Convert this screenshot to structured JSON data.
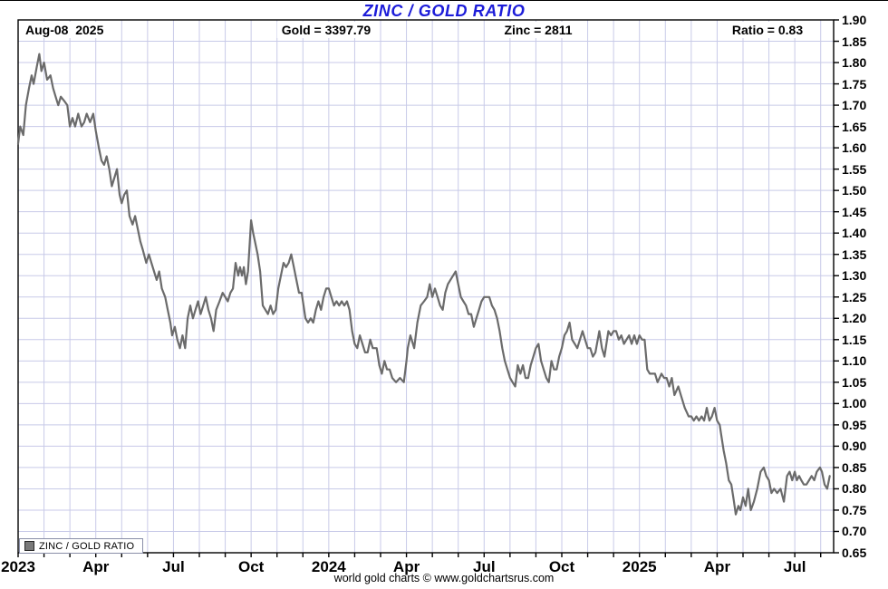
{
  "title": "ZINC / GOLD RATIO",
  "header": {
    "date": "Aug-08  2025",
    "gold": "Gold = 3397.79",
    "zinc": "Zinc = 2811",
    "ratio": "Ratio = 0.83"
  },
  "legend": {
    "label": "ZINC / GOLD RATIO",
    "swatch_color": "#7a7a7a"
  },
  "footer_credit": "world gold charts © www.goldchartsrus.com",
  "colors": {
    "title_blue": "#1c1cd9",
    "line_gray": "#6b6b6b",
    "grid_blue": "#c8cae8",
    "frame_black": "#000000"
  },
  "chart_data": {
    "type": "line",
    "series_name": "ZINC / GOLD RATIO",
    "x_unit": "months since Jan 2023 (Jan 2023 to Aug-08 2025)",
    "xlim": [
      0,
      31.5
    ],
    "ylim": [
      0.65,
      1.9
    ],
    "y_tick_step": 0.05,
    "x_minor_tick_every_months": 1,
    "grid": true,
    "legend_position": "bottom-left",
    "x_ticks": [
      {
        "m": 0,
        "label": "2023"
      },
      {
        "m": 3,
        "label": "Apr"
      },
      {
        "m": 6,
        "label": "Jul"
      },
      {
        "m": 9,
        "label": "Oct"
      },
      {
        "m": 12,
        "label": "2024"
      },
      {
        "m": 15,
        "label": "Apr"
      },
      {
        "m": 18,
        "label": "Jul"
      },
      {
        "m": 21,
        "label": "Oct"
      },
      {
        "m": 24,
        "label": "2025"
      },
      {
        "m": 27,
        "label": "Apr"
      },
      {
        "m": 30,
        "label": "Jul"
      }
    ],
    "points": [
      [
        0,
        1.61
      ],
      [
        0.08,
        1.65
      ],
      [
        0.2,
        1.63
      ],
      [
        0.3,
        1.7
      ],
      [
        0.42,
        1.74
      ],
      [
        0.52,
        1.77
      ],
      [
        0.6,
        1.75
      ],
      [
        0.72,
        1.79
      ],
      [
        0.82,
        1.82
      ],
      [
        0.9,
        1.78
      ],
      [
        1.0,
        1.8
      ],
      [
        1.12,
        1.76
      ],
      [
        1.25,
        1.77
      ],
      [
        1.35,
        1.74
      ],
      [
        1.45,
        1.72
      ],
      [
        1.55,
        1.7
      ],
      [
        1.65,
        1.72
      ],
      [
        1.78,
        1.71
      ],
      [
        1.9,
        1.7
      ],
      [
        2.0,
        1.65
      ],
      [
        2.1,
        1.67
      ],
      [
        2.2,
        1.65
      ],
      [
        2.32,
        1.68
      ],
      [
        2.45,
        1.65
      ],
      [
        2.55,
        1.66
      ],
      [
        2.65,
        1.68
      ],
      [
        2.78,
        1.66
      ],
      [
        2.9,
        1.68
      ],
      [
        3.0,
        1.64
      ],
      [
        3.12,
        1.6
      ],
      [
        3.22,
        1.57
      ],
      [
        3.32,
        1.56
      ],
      [
        3.42,
        1.58
      ],
      [
        3.52,
        1.55
      ],
      [
        3.62,
        1.51
      ],
      [
        3.72,
        1.53
      ],
      [
        3.82,
        1.55
      ],
      [
        3.92,
        1.49
      ],
      [
        4.0,
        1.47
      ],
      [
        4.1,
        1.49
      ],
      [
        4.2,
        1.5
      ],
      [
        4.3,
        1.44
      ],
      [
        4.42,
        1.42
      ],
      [
        4.52,
        1.44
      ],
      [
        4.62,
        1.41
      ],
      [
        4.72,
        1.38
      ],
      [
        4.82,
        1.36
      ],
      [
        4.95,
        1.33
      ],
      [
        5.05,
        1.35
      ],
      [
        5.15,
        1.33
      ],
      [
        5.25,
        1.31
      ],
      [
        5.35,
        1.29
      ],
      [
        5.45,
        1.31
      ],
      [
        5.55,
        1.27
      ],
      [
        5.68,
        1.25
      ],
      [
        5.78,
        1.22
      ],
      [
        5.88,
        1.19
      ],
      [
        5.95,
        1.16
      ],
      [
        6.05,
        1.18
      ],
      [
        6.15,
        1.15
      ],
      [
        6.25,
        1.13
      ],
      [
        6.35,
        1.16
      ],
      [
        6.45,
        1.13
      ],
      [
        6.55,
        1.2
      ],
      [
        6.65,
        1.23
      ],
      [
        6.75,
        1.2
      ],
      [
        6.85,
        1.22
      ],
      [
        6.95,
        1.24
      ],
      [
        7.05,
        1.21
      ],
      [
        7.15,
        1.23
      ],
      [
        7.25,
        1.25
      ],
      [
        7.35,
        1.22
      ],
      [
        7.45,
        1.2
      ],
      [
        7.55,
        1.17
      ],
      [
        7.65,
        1.22
      ],
      [
        7.78,
        1.24
      ],
      [
        7.9,
        1.26
      ],
      [
        8.0,
        1.25
      ],
      [
        8.1,
        1.24
      ],
      [
        8.2,
        1.26
      ],
      [
        8.3,
        1.27
      ],
      [
        8.4,
        1.33
      ],
      [
        8.5,
        1.3
      ],
      [
        8.57,
        1.32
      ],
      [
        8.65,
        1.3
      ],
      [
        8.72,
        1.32
      ],
      [
        8.8,
        1.28
      ],
      [
        8.88,
        1.31
      ],
      [
        8.95,
        1.38
      ],
      [
        9.0,
        1.43
      ],
      [
        9.08,
        1.4
      ],
      [
        9.15,
        1.38
      ],
      [
        9.25,
        1.35
      ],
      [
        9.35,
        1.31
      ],
      [
        9.45,
        1.23
      ],
      [
        9.55,
        1.22
      ],
      [
        9.65,
        1.21
      ],
      [
        9.75,
        1.23
      ],
      [
        9.85,
        1.21
      ],
      [
        9.95,
        1.22
      ],
      [
        10.05,
        1.27
      ],
      [
        10.15,
        1.3
      ],
      [
        10.25,
        1.33
      ],
      [
        10.35,
        1.32
      ],
      [
        10.45,
        1.33
      ],
      [
        10.55,
        1.35
      ],
      [
        10.65,
        1.32
      ],
      [
        10.75,
        1.29
      ],
      [
        10.85,
        1.26
      ],
      [
        10.95,
        1.26
      ],
      [
        11.1,
        1.2
      ],
      [
        11.2,
        1.19
      ],
      [
        11.3,
        1.2
      ],
      [
        11.4,
        1.19
      ],
      [
        11.5,
        1.22
      ],
      [
        11.6,
        1.24
      ],
      [
        11.7,
        1.22
      ],
      [
        11.8,
        1.25
      ],
      [
        11.9,
        1.27
      ],
      [
        12.0,
        1.27
      ],
      [
        12.1,
        1.25
      ],
      [
        12.2,
        1.23
      ],
      [
        12.3,
        1.24
      ],
      [
        12.4,
        1.23
      ],
      [
        12.5,
        1.24
      ],
      [
        12.6,
        1.23
      ],
      [
        12.7,
        1.24
      ],
      [
        12.8,
        1.22
      ],
      [
        12.9,
        1.17
      ],
      [
        13.0,
        1.14
      ],
      [
        13.1,
        1.13
      ],
      [
        13.2,
        1.16
      ],
      [
        13.3,
        1.14
      ],
      [
        13.4,
        1.12
      ],
      [
        13.5,
        1.12
      ],
      [
        13.6,
        1.15
      ],
      [
        13.7,
        1.13
      ],
      [
        13.85,
        1.13
      ],
      [
        13.95,
        1.09
      ],
      [
        14.05,
        1.07
      ],
      [
        14.15,
        1.1
      ],
      [
        14.25,
        1.08
      ],
      [
        14.35,
        1.08
      ],
      [
        14.45,
        1.06
      ],
      [
        14.6,
        1.05
      ],
      [
        14.75,
        1.06
      ],
      [
        14.9,
        1.05
      ],
      [
        15.0,
        1.1
      ],
      [
        15.05,
        1.13
      ],
      [
        15.15,
        1.16
      ],
      [
        15.3,
        1.13
      ],
      [
        15.42,
        1.19
      ],
      [
        15.55,
        1.23
      ],
      [
        15.68,
        1.24
      ],
      [
        15.8,
        1.25
      ],
      [
        15.9,
        1.28
      ],
      [
        16.0,
        1.25
      ],
      [
        16.1,
        1.27
      ],
      [
        16.2,
        1.25
      ],
      [
        16.3,
        1.23
      ],
      [
        16.4,
        1.22
      ],
      [
        16.5,
        1.26
      ],
      [
        16.6,
        1.28
      ],
      [
        16.7,
        1.29
      ],
      [
        16.8,
        1.3
      ],
      [
        16.9,
        1.31
      ],
      [
        17.0,
        1.28
      ],
      [
        17.1,
        1.25
      ],
      [
        17.2,
        1.24
      ],
      [
        17.3,
        1.23
      ],
      [
        17.4,
        1.21
      ],
      [
        17.5,
        1.21
      ],
      [
        17.6,
        1.18
      ],
      [
        17.7,
        1.2
      ],
      [
        17.8,
        1.22
      ],
      [
        17.9,
        1.24
      ],
      [
        18.0,
        1.25
      ],
      [
        18.1,
        1.25
      ],
      [
        18.2,
        1.25
      ],
      [
        18.3,
        1.23
      ],
      [
        18.4,
        1.22
      ],
      [
        18.5,
        1.2
      ],
      [
        18.6,
        1.17
      ],
      [
        18.7,
        1.13
      ],
      [
        18.8,
        1.1
      ],
      [
        18.9,
        1.08
      ],
      [
        19.0,
        1.06
      ],
      [
        19.1,
        1.05
      ],
      [
        19.2,
        1.04
      ],
      [
        19.3,
        1.09
      ],
      [
        19.4,
        1.07
      ],
      [
        19.5,
        1.09
      ],
      [
        19.6,
        1.06
      ],
      [
        19.7,
        1.06
      ],
      [
        19.8,
        1.09
      ],
      [
        19.9,
        1.11
      ],
      [
        20.0,
        1.13
      ],
      [
        20.1,
        1.14
      ],
      [
        20.2,
        1.1
      ],
      [
        20.3,
        1.08
      ],
      [
        20.4,
        1.06
      ],
      [
        20.5,
        1.05
      ],
      [
        20.6,
        1.1
      ],
      [
        20.7,
        1.08
      ],
      [
        20.8,
        1.08
      ],
      [
        20.9,
        1.11
      ],
      [
        21.0,
        1.13
      ],
      [
        21.1,
        1.16
      ],
      [
        21.2,
        1.17
      ],
      [
        21.3,
        1.19
      ],
      [
        21.4,
        1.15
      ],
      [
        21.5,
        1.14
      ],
      [
        21.6,
        1.13
      ],
      [
        21.7,
        1.15
      ],
      [
        21.8,
        1.17
      ],
      [
        21.9,
        1.15
      ],
      [
        22.0,
        1.13
      ],
      [
        22.1,
        1.13
      ],
      [
        22.2,
        1.11
      ],
      [
        22.3,
        1.12
      ],
      [
        22.45,
        1.17
      ],
      [
        22.55,
        1.13
      ],
      [
        22.65,
        1.11
      ],
      [
        22.8,
        1.17
      ],
      [
        22.9,
        1.16
      ],
      [
        23.0,
        1.17
      ],
      [
        23.1,
        1.17
      ],
      [
        23.2,
        1.15
      ],
      [
        23.3,
        1.16
      ],
      [
        23.4,
        1.14
      ],
      [
        23.5,
        1.15
      ],
      [
        23.6,
        1.16
      ],
      [
        23.7,
        1.14
      ],
      [
        23.8,
        1.16
      ],
      [
        23.9,
        1.14
      ],
      [
        24.0,
        1.16
      ],
      [
        24.1,
        1.15
      ],
      [
        24.2,
        1.15
      ],
      [
        24.3,
        1.08
      ],
      [
        24.4,
        1.07
      ],
      [
        24.5,
        1.07
      ],
      [
        24.6,
        1.07
      ],
      [
        24.7,
        1.05
      ],
      [
        24.85,
        1.07
      ],
      [
        24.95,
        1.06
      ],
      [
        25.05,
        1.06
      ],
      [
        25.15,
        1.04
      ],
      [
        25.25,
        1.06
      ],
      [
        25.35,
        1.02
      ],
      [
        25.5,
        1.04
      ],
      [
        25.6,
        1.02
      ],
      [
        25.75,
        0.99
      ],
      [
        25.9,
        0.97
      ],
      [
        26.0,
        0.97
      ],
      [
        26.1,
        0.96
      ],
      [
        26.2,
        0.97
      ],
      [
        26.3,
        0.96
      ],
      [
        26.4,
        0.97
      ],
      [
        26.5,
        0.96
      ],
      [
        26.6,
        0.99
      ],
      [
        26.7,
        0.96
      ],
      [
        26.8,
        0.97
      ],
      [
        26.9,
        0.99
      ],
      [
        27.0,
        0.96
      ],
      [
        27.1,
        0.95
      ],
      [
        27.15,
        0.93
      ],
      [
        27.25,
        0.89
      ],
      [
        27.35,
        0.86
      ],
      [
        27.45,
        0.82
      ],
      [
        27.55,
        0.81
      ],
      [
        27.65,
        0.77
      ],
      [
        27.72,
        0.74
      ],
      [
        27.82,
        0.76
      ],
      [
        27.9,
        0.75
      ],
      [
        28.0,
        0.78
      ],
      [
        28.1,
        0.76
      ],
      [
        28.2,
        0.8
      ],
      [
        28.3,
        0.75
      ],
      [
        28.42,
        0.77
      ],
      [
        28.55,
        0.8
      ],
      [
        28.68,
        0.84
      ],
      [
        28.8,
        0.85
      ],
      [
        28.9,
        0.83
      ],
      [
        29.0,
        0.82
      ],
      [
        29.1,
        0.79
      ],
      [
        29.2,
        0.8
      ],
      [
        29.32,
        0.79
      ],
      [
        29.45,
        0.8
      ],
      [
        29.58,
        0.77
      ],
      [
        29.7,
        0.83
      ],
      [
        29.8,
        0.84
      ],
      [
        29.9,
        0.82
      ],
      [
        30.0,
        0.84
      ],
      [
        30.08,
        0.82
      ],
      [
        30.17,
        0.83
      ],
      [
        30.25,
        0.82
      ],
      [
        30.35,
        0.81
      ],
      [
        30.45,
        0.81
      ],
      [
        30.55,
        0.82
      ],
      [
        30.65,
        0.83
      ],
      [
        30.75,
        0.82
      ],
      [
        30.85,
        0.84
      ],
      [
        30.97,
        0.85
      ],
      [
        31.05,
        0.84
      ],
      [
        31.15,
        0.81
      ],
      [
        31.25,
        0.8
      ],
      [
        31.35,
        0.83
      ]
    ]
  }
}
